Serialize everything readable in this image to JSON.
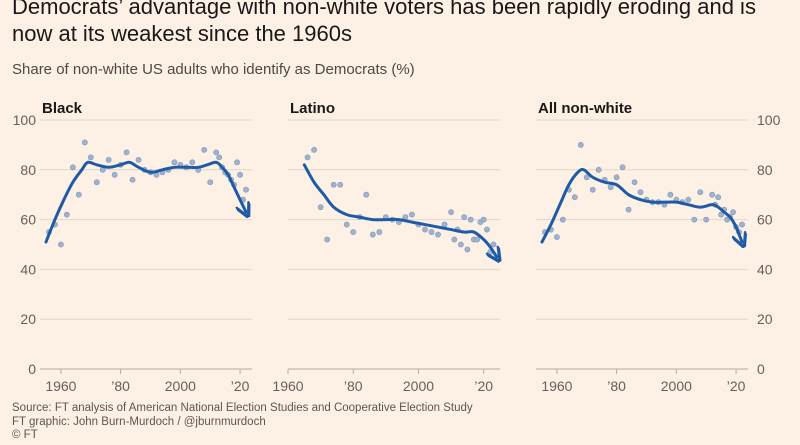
{
  "title": "Democrats’ advantage with non-white voters has been rapidly eroding and is now at its weakest since the 1960s",
  "subtitle": "Share of non-white US adults who identify as Democrats (%)",
  "footer": {
    "source": "Source: FT analysis of American National Election Studies and Cooperative Election Study",
    "graphic": "FT graphic: John Burn-Murdoch / @jburnmurdoch",
    "copyright": "© FT"
  },
  "colors": {
    "background": "#fdf1e5",
    "trend_line": "#1f5aa6",
    "points": "#9fb3cf",
    "grid": "#e4d6c9"
  },
  "chart_data": [
    {
      "type": "scatter",
      "title": "Black",
      "ylim": [
        0,
        100
      ],
      "yticks": [
        "0",
        "20",
        "40",
        "60",
        "80",
        "100"
      ],
      "xticks": [
        "1960",
        "’80",
        "2000",
        "’20"
      ],
      "xtick_values": [
        1960,
        1980,
        2000,
        2020
      ],
      "xlim": [
        1953,
        2024
      ],
      "points": [
        [
          1956,
          55
        ],
        [
          1958,
          58
        ],
        [
          1960,
          50
        ],
        [
          1962,
          62
        ],
        [
          1964,
          81
        ],
        [
          1966,
          70
        ],
        [
          1968,
          91
        ],
        [
          1970,
          85
        ],
        [
          1972,
          75
        ],
        [
          1974,
          80
        ],
        [
          1976,
          84
        ],
        [
          1978,
          78
        ],
        [
          1980,
          82
        ],
        [
          1982,
          87
        ],
        [
          1984,
          76
        ],
        [
          1986,
          84
        ],
        [
          1988,
          80
        ],
        [
          1990,
          79
        ],
        [
          1992,
          78
        ],
        [
          1994,
          79
        ],
        [
          1996,
          80
        ],
        [
          1998,
          83
        ],
        [
          2000,
          82
        ],
        [
          2002,
          81
        ],
        [
          2004,
          83
        ],
        [
          2006,
          80
        ],
        [
          2008,
          88
        ],
        [
          2010,
          75
        ],
        [
          2012,
          87
        ],
        [
          2013,
          85
        ],
        [
          2014,
          81
        ],
        [
          2015,
          79
        ],
        [
          2016,
          78
        ],
        [
          2017,
          76
        ],
        [
          2018,
          74
        ],
        [
          2019,
          83
        ],
        [
          2020,
          78
        ],
        [
          2021,
          68
        ],
        [
          2022,
          72
        ]
      ],
      "trend": [
        [
          1955,
          51
        ],
        [
          1958,
          60
        ],
        [
          1961,
          68
        ],
        [
          1964,
          75
        ],
        [
          1967,
          80
        ],
        [
          1969,
          83
        ],
        [
          1972,
          82
        ],
        [
          1976,
          81
        ],
        [
          1980,
          82
        ],
        [
          1983,
          83
        ],
        [
          1986,
          81
        ],
        [
          1990,
          79
        ],
        [
          1994,
          80
        ],
        [
          1998,
          81
        ],
        [
          2002,
          81
        ],
        [
          2006,
          81
        ],
        [
          2009,
          82
        ],
        [
          2012,
          83
        ],
        [
          2014,
          81
        ],
        [
          2016,
          78
        ],
        [
          2018,
          73
        ],
        [
          2020,
          68
        ],
        [
          2022,
          63
        ]
      ]
    },
    {
      "type": "scatter",
      "title": "Latino",
      "ylim": [
        0,
        100
      ],
      "yticks": [
        "0",
        "20",
        "40",
        "60",
        "80",
        "100"
      ],
      "xticks": [
        "1960",
        "’80",
        "2000",
        "’20"
      ],
      "xtick_values": [
        1960,
        1980,
        2000,
        2020
      ],
      "xlim": [
        1960,
        2025
      ],
      "points": [
        [
          1966,
          85
        ],
        [
          1968,
          88
        ],
        [
          1970,
          65
        ],
        [
          1972,
          52
        ],
        [
          1974,
          74
        ],
        [
          1976,
          74
        ],
        [
          1978,
          58
        ],
        [
          1980,
          55
        ],
        [
          1982,
          61
        ],
        [
          1984,
          70
        ],
        [
          1986,
          54
        ],
        [
          1988,
          55
        ],
        [
          1990,
          61
        ],
        [
          1992,
          60
        ],
        [
          1994,
          59
        ],
        [
          1996,
          61
        ],
        [
          1998,
          62
        ],
        [
          2000,
          58
        ],
        [
          2002,
          56
        ],
        [
          2004,
          55
        ],
        [
          2006,
          54
        ],
        [
          2008,
          58
        ],
        [
          2010,
          63
        ],
        [
          2011,
          52
        ],
        [
          2012,
          56
        ],
        [
          2013,
          50
        ],
        [
          2014,
          61
        ],
        [
          2015,
          48
        ],
        [
          2016,
          60
        ],
        [
          2017,
          52
        ],
        [
          2018,
          52
        ],
        [
          2019,
          59
        ],
        [
          2020,
          60
        ],
        [
          2021,
          56
        ],
        [
          2022,
          47
        ],
        [
          2023,
          50
        ]
      ],
      "trend": [
        [
          1965,
          82
        ],
        [
          1968,
          75
        ],
        [
          1971,
          70
        ],
        [
          1974,
          65
        ],
        [
          1978,
          62
        ],
        [
          1982,
          61
        ],
        [
          1986,
          60
        ],
        [
          1990,
          60
        ],
        [
          1994,
          60
        ],
        [
          1998,
          59
        ],
        [
          2002,
          58
        ],
        [
          2006,
          57
        ],
        [
          2010,
          56
        ],
        [
          2014,
          55
        ],
        [
          2017,
          55
        ],
        [
          2020,
          52
        ],
        [
          2022,
          49
        ],
        [
          2024,
          45
        ]
      ]
    },
    {
      "type": "scatter",
      "title": "All non-white",
      "ylim": [
        0,
        100
      ],
      "yticks": [
        "0",
        "20",
        "40",
        "60",
        "80",
        "100"
      ],
      "xticks": [
        "1960",
        "’80",
        "2000",
        "’20"
      ],
      "xtick_values": [
        1960,
        1980,
        2000,
        2020
      ],
      "xlim": [
        1953,
        2024
      ],
      "points": [
        [
          1956,
          55
        ],
        [
          1958,
          56
        ],
        [
          1960,
          53
        ],
        [
          1962,
          60
        ],
        [
          1964,
          72
        ],
        [
          1966,
          69
        ],
        [
          1968,
          90
        ],
        [
          1970,
          77
        ],
        [
          1972,
          72
        ],
        [
          1974,
          80
        ],
        [
          1976,
          76
        ],
        [
          1978,
          73
        ],
        [
          1980,
          77
        ],
        [
          1982,
          81
        ],
        [
          1984,
          64
        ],
        [
          1986,
          75
        ],
        [
          1988,
          71
        ],
        [
          1990,
          68
        ],
        [
          1992,
          67
        ],
        [
          1994,
          67
        ],
        [
          1996,
          66
        ],
        [
          1998,
          70
        ],
        [
          2000,
          68
        ],
        [
          2002,
          67
        ],
        [
          2004,
          68
        ],
        [
          2006,
          60
        ],
        [
          2008,
          71
        ],
        [
          2010,
          60
        ],
        [
          2012,
          70
        ],
        [
          2013,
          66
        ],
        [
          2014,
          69
        ],
        [
          2015,
          62
        ],
        [
          2016,
          64
        ],
        [
          2017,
          60
        ],
        [
          2018,
          61
        ],
        [
          2019,
          63
        ],
        [
          2020,
          57
        ],
        [
          2021,
          55
        ],
        [
          2022,
          58
        ]
      ],
      "trend": [
        [
          1955,
          51
        ],
        [
          1958,
          58
        ],
        [
          1961,
          66
        ],
        [
          1964,
          74
        ],
        [
          1967,
          79
        ],
        [
          1969,
          80
        ],
        [
          1972,
          77
        ],
        [
          1976,
          75
        ],
        [
          1980,
          74
        ],
        [
          1984,
          70
        ],
        [
          1988,
          68
        ],
        [
          1992,
          67
        ],
        [
          1996,
          67
        ],
        [
          2000,
          67
        ],
        [
          2004,
          66
        ],
        [
          2008,
          65
        ],
        [
          2012,
          66
        ],
        [
          2014,
          65
        ],
        [
          2016,
          63
        ],
        [
          2018,
          61
        ],
        [
          2020,
          57
        ],
        [
          2022,
          51
        ]
      ]
    }
  ]
}
